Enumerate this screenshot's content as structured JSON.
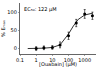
{
  "chart_data": {
    "type": "scatter",
    "annotation": "EC₅₀: 122 µM",
    "x_label": "[Ouabain] (µM)",
    "y_label": "% Eₘₐₓ",
    "log": "x",
    "grid": false,
    "xlim": [
      0.1,
      5000
    ],
    "xticks": [
      0.1,
      1,
      10,
      100,
      1000
    ],
    "ylim": [
      -15,
      125
    ],
    "yticks": [
      0,
      50,
      100
    ],
    "series": [
      {
        "type": "scatter",
        "marker": "circle",
        "color": "#000000",
        "x": [
          1,
          3,
          10,
          30,
          100,
          300,
          1000,
          3000
        ],
        "values": [
          0,
          2,
          3,
          10,
          35,
          70,
          95,
          90
        ],
        "errors": [
          5,
          5,
          5,
          8,
          10,
          10,
          12,
          10
        ]
      },
      {
        "type": "line",
        "line_style": "solid",
        "color": "#000000",
        "x": [
          0.3,
          1,
          3,
          10,
          30,
          100,
          200,
          400,
          1000,
          3000
        ],
        "values": [
          0,
          0,
          1,
          3,
          10,
          40,
          62,
          80,
          92,
          97
        ]
      }
    ]
  }
}
